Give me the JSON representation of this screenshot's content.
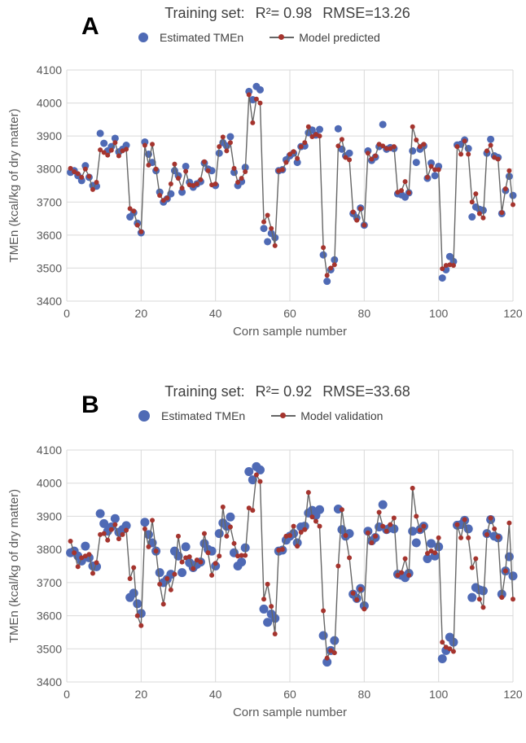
{
  "colors": {
    "estimated": "#4F6AB5",
    "model": "#A5342E",
    "line": "#666666",
    "grid": "#D9D9D9"
  },
  "chart_data": [
    {
      "type": "line",
      "panel_label": "A",
      "title": {
        "prefix": "Training set:",
        "r2": "R²= 0.98",
        "rmse": "RMSE=13.26"
      },
      "xlabel": "Corn sample number",
      "ylabel": "TMEn (kcal/kg of dry matter)",
      "xlim": [
        0,
        120
      ],
      "ylim": [
        3400,
        4100
      ],
      "xticks": [
        "0",
        "20",
        "40",
        "60",
        "80",
        "100",
        "120"
      ],
      "yticks": [
        "3400",
        "3500",
        "3600",
        "3700",
        "3800",
        "3900",
        "4000",
        "4100"
      ],
      "grid": true,
      "legend_position": "top",
      "series": [
        {
          "name": "Estimated TMEn",
          "style": "points",
          "values": [
            3790,
            3795,
            3780,
            3765,
            3810,
            3775,
            3750,
            3748,
            3908,
            3878,
            3855,
            3868,
            3893,
            3852,
            3860,
            3872,
            3655,
            3668,
            3636,
            3607,
            3882,
            3845,
            3820,
            3795,
            3730,
            3700,
            3710,
            3725,
            3795,
            3780,
            3730,
            3808,
            3760,
            3745,
            3755,
            3762,
            3818,
            3800,
            3795,
            3750,
            3848,
            3880,
            3870,
            3898,
            3790,
            3750,
            3762,
            3805,
            4035,
            4010,
            4050,
            4040,
            3620,
            3580,
            3605,
            3592,
            3795,
            3798,
            3828,
            3840,
            3848,
            3820,
            3868,
            3870,
            3910,
            3918,
            3903,
            3920,
            3540,
            3460,
            3495,
            3525,
            3922,
            3860,
            3840,
            3848,
            3665,
            3652,
            3682,
            3630,
            3855,
            3826,
            3836,
            3868,
            3935,
            3860,
            3865,
            3862,
            3725,
            3722,
            3715,
            3728,
            3855,
            3820,
            3860,
            3870,
            3772,
            3818,
            3780,
            3808,
            3470,
            3495,
            3535,
            3520,
            3873,
            3875,
            3888,
            3862,
            3655,
            3685,
            3678,
            3675,
            3848,
            3890,
            3840,
            3835,
            3665,
            3735,
            3778,
            3720
          ]
        },
        {
          "name": "Model predicted",
          "style": "line",
          "values": [
            3802,
            3792,
            3786,
            3775,
            3800,
            3778,
            3738,
            3760,
            3858,
            3850,
            3842,
            3857,
            3880,
            3840,
            3855,
            3860,
            3680,
            3673,
            3630,
            3610,
            3872,
            3812,
            3875,
            3800,
            3720,
            3705,
            3712,
            3755,
            3815,
            3772,
            3742,
            3793,
            3752,
            3750,
            3755,
            3768,
            3822,
            3795,
            3752,
            3755,
            3868,
            3897,
            3855,
            3880,
            3802,
            3760,
            3772,
            3792,
            4025,
            3940,
            4012,
            4000,
            3640,
            3660,
            3620,
            3568,
            3795,
            3798,
            3820,
            3845,
            3853,
            3832,
            3868,
            3880,
            3928,
            3898,
            3905,
            3900,
            3562,
            3478,
            3500,
            3510,
            3870,
            3890,
            3835,
            3828,
            3670,
            3645,
            3680,
            3630,
            3848,
            3830,
            3840,
            3875,
            3870,
            3862,
            3862,
            3868,
            3730,
            3735,
            3762,
            3728,
            3928,
            3888,
            3868,
            3875,
            3775,
            3808,
            3798,
            3798,
            3498,
            3508,
            3510,
            3508,
            3868,
            3845,
            3885,
            3845,
            3700,
            3725,
            3665,
            3652,
            3855,
            3872,
            3835,
            3830,
            3668,
            3740,
            3795,
            3692
          ]
        }
      ]
    },
    {
      "type": "line",
      "panel_label": "B",
      "title": {
        "prefix": "Training set:",
        "r2": "R²= 0.92",
        "rmse": "RMSE=33.68"
      },
      "xlabel": "Corn sample number",
      "ylabel": "TMEn (kcal/kg of dry matter)",
      "xlim": [
        0,
        120
      ],
      "ylim": [
        3400,
        4100
      ],
      "xticks": [
        "0",
        "20",
        "40",
        "60",
        "80",
        "100",
        "120"
      ],
      "yticks": [
        "3400",
        "3500",
        "3600",
        "3700",
        "3800",
        "3900",
        "4000",
        "4100"
      ],
      "grid": true,
      "legend_position": "top",
      "series": [
        {
          "name": "Estimated TMEn",
          "style": "points",
          "values": [
            3790,
            3795,
            3780,
            3765,
            3810,
            3775,
            3750,
            3748,
            3908,
            3878,
            3855,
            3868,
            3893,
            3852,
            3860,
            3872,
            3655,
            3668,
            3636,
            3607,
            3882,
            3845,
            3820,
            3795,
            3730,
            3700,
            3710,
            3725,
            3795,
            3780,
            3730,
            3808,
            3760,
            3745,
            3755,
            3762,
            3818,
            3800,
            3795,
            3750,
            3848,
            3880,
            3870,
            3898,
            3790,
            3750,
            3762,
            3805,
            4035,
            4010,
            4050,
            4040,
            3620,
            3580,
            3605,
            3592,
            3795,
            3798,
            3828,
            3840,
            3848,
            3820,
            3868,
            3870,
            3910,
            3918,
            3903,
            3920,
            3540,
            3460,
            3495,
            3525,
            3922,
            3860,
            3840,
            3848,
            3665,
            3652,
            3682,
            3630,
            3855,
            3826,
            3836,
            3868,
            3935,
            3860,
            3865,
            3862,
            3725,
            3722,
            3715,
            3728,
            3855,
            3820,
            3860,
            3870,
            3772,
            3818,
            3780,
            3808,
            3470,
            3495,
            3535,
            3520,
            3873,
            3875,
            3888,
            3862,
            3655,
            3685,
            3678,
            3675,
            3848,
            3890,
            3840,
            3835,
            3665,
            3735,
            3778,
            3720
          ]
        },
        {
          "name": "Model validation",
          "style": "line",
          "values": [
            3825,
            3790,
            3748,
            3775,
            3780,
            3785,
            3728,
            3760,
            3845,
            3848,
            3828,
            3860,
            3875,
            3832,
            3845,
            3858,
            3712,
            3745,
            3600,
            3570,
            3862,
            3808,
            3888,
            3795,
            3695,
            3635,
            3712,
            3678,
            3725,
            3840,
            3762,
            3775,
            3778,
            3742,
            3768,
            3762,
            3848,
            3790,
            3722,
            3758,
            3780,
            3928,
            3840,
            3868,
            3818,
            3780,
            3782,
            3782,
            3925,
            3918,
            4025,
            4005,
            3650,
            3695,
            3628,
            3545,
            3798,
            3800,
            3840,
            3842,
            3870,
            3810,
            3852,
            3860,
            3972,
            3898,
            3885,
            3870,
            3615,
            3472,
            3495,
            3488,
            3750,
            3920,
            3842,
            3775,
            3668,
            3648,
            3680,
            3620,
            3850,
            3820,
            3840,
            3912,
            3870,
            3855,
            3875,
            3895,
            3722,
            3730,
            3772,
            3722,
            3985,
            3900,
            3858,
            3870,
            3788,
            3795,
            3790,
            3835,
            3520,
            3505,
            3500,
            3492,
            3875,
            3835,
            3890,
            3835,
            3745,
            3772,
            3650,
            3625,
            3845,
            3895,
            3862,
            3838,
            3655,
            3735,
            3880,
            3650
          ]
        }
      ]
    }
  ]
}
